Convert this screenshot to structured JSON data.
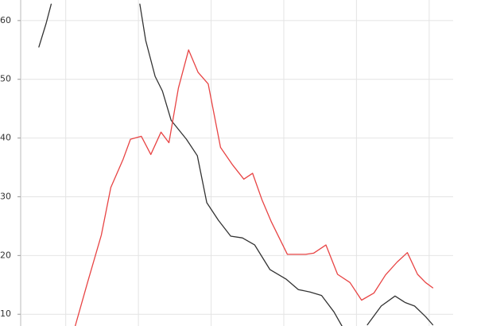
{
  "chart_data": {
    "type": "line",
    "xlim": [
      3.8,
      63.3
    ],
    "xticks": [
      10,
      20,
      30,
      40,
      50,
      60
    ],
    "ylim": [
      8,
      63.5
    ],
    "yticks": [
      10,
      20,
      30,
      40,
      50,
      60
    ],
    "grid": true,
    "series": [
      {
        "color": "#333333",
        "x": [
          6.3,
          7.3,
          8.0,
          14,
          20.2,
          21.0,
          22.3,
          23.3,
          24.5,
          26.6,
          28.1,
          29.4,
          31.0,
          32.7,
          34.3,
          36.0,
          38.1,
          40.3,
          42.0,
          43.6,
          45.2,
          46.9,
          48.0,
          50,
          51.5,
          53.4,
          55.3,
          56.7,
          58.0,
          59.5,
          60.5
        ],
        "values": [
          55.5,
          59.5,
          62.8,
          null,
          62.8,
          56.6,
          50.5,
          48,
          43,
          39.8,
          37,
          29,
          26,
          23.3,
          23,
          21.8,
          17.6,
          16,
          14.2,
          13.8,
          13.2,
          10.4,
          8,
          null,
          8.2,
          11.4,
          13.1,
          12,
          11.4,
          9.6,
          8.2
        ]
      },
      {
        "color": "#e84444",
        "x": [
          11.3,
          13.0,
          14.9,
          16.2,
          17.9,
          18.9,
          20.4,
          21.7,
          23.1,
          24.2,
          25.5,
          26.9,
          28.2,
          29.6,
          31.3,
          32.9,
          34.5,
          35.7,
          37.0,
          38.3,
          40.5,
          43.0,
          44.1,
          45.8,
          47.4,
          49.1,
          50.7,
          52.4,
          54.0,
          55.6,
          57.0,
          58.4,
          59.5,
          60.5
        ],
        "values": [
          8,
          15.4,
          23.5,
          31.6,
          36.4,
          39.8,
          40.3,
          37.2,
          41,
          39.2,
          48.5,
          55,
          51.2,
          49.2,
          38.4,
          35.5,
          33,
          34,
          29.5,
          25.7,
          20.2,
          20.2,
          20.4,
          21.8,
          16.8,
          15.4,
          12.4,
          13.6,
          16.7,
          18.9,
          20.5,
          16.8,
          15.4,
          14.5
        ]
      }
    ]
  }
}
